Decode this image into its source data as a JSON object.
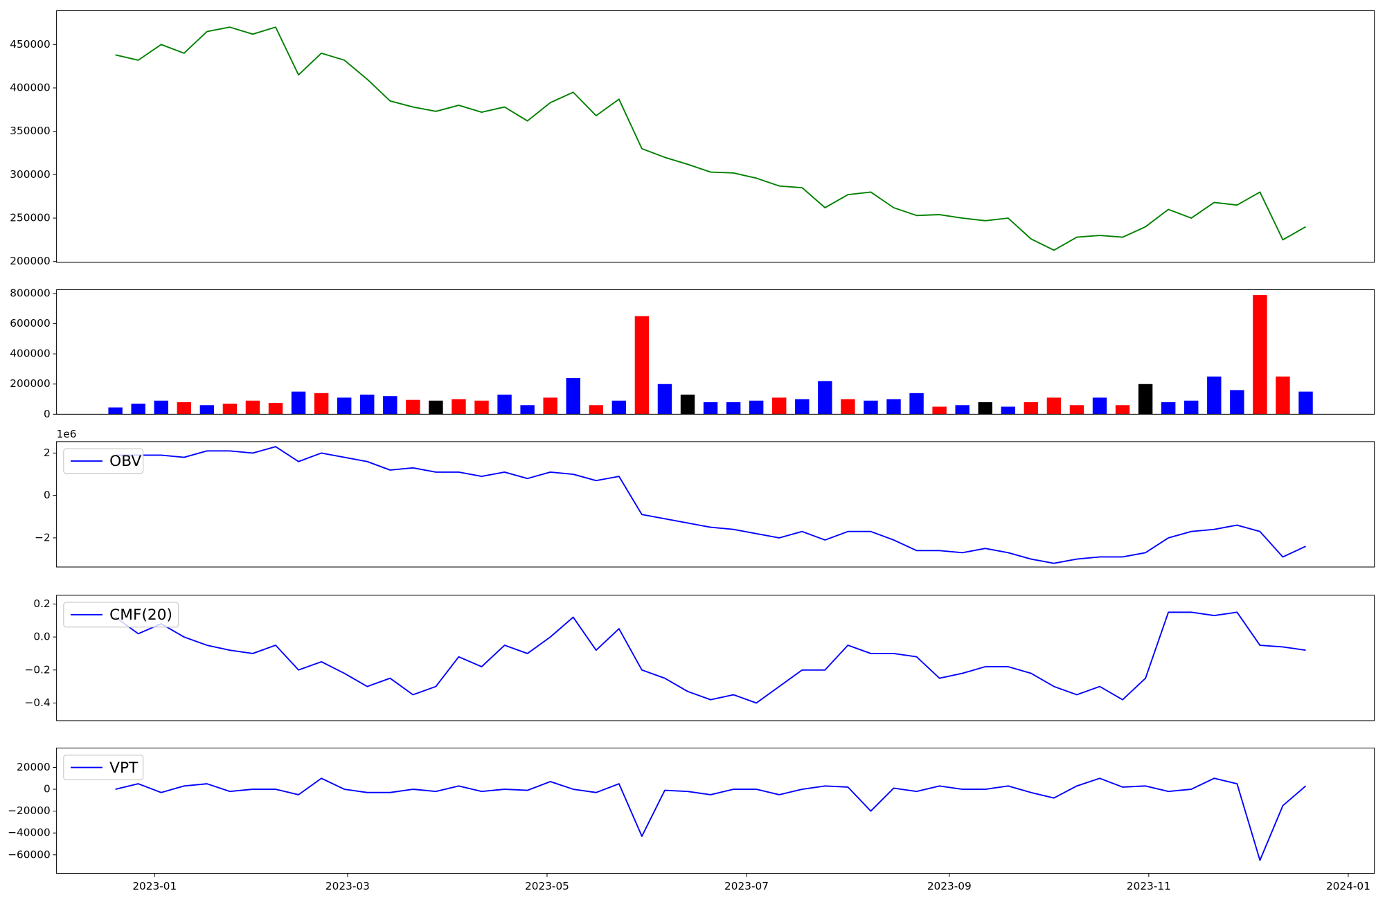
{
  "chart_data": [
    {
      "type": "line",
      "x": [
        "2022-12-20",
        "2022-12-27",
        "2023-01-03",
        "2023-01-10",
        "2023-01-17",
        "2023-01-24",
        "2023-01-31",
        "2023-02-07",
        "2023-02-14",
        "2023-02-21",
        "2023-02-28",
        "2023-03-07",
        "2023-03-14",
        "2023-03-21",
        "2023-03-28",
        "2023-04-04",
        "2023-04-11",
        "2023-04-18",
        "2023-04-25",
        "2023-05-02",
        "2023-05-09",
        "2023-05-16",
        "2023-05-23",
        "2023-05-30",
        "2023-06-06",
        "2023-06-13",
        "2023-06-20",
        "2023-06-27",
        "2023-07-04",
        "2023-07-11",
        "2023-07-18",
        "2023-07-25",
        "2023-08-01",
        "2023-08-08",
        "2023-08-15",
        "2023-08-22",
        "2023-08-29",
        "2023-09-05",
        "2023-09-12",
        "2023-09-19",
        "2023-09-26",
        "2023-10-03",
        "2023-10-10",
        "2023-10-17",
        "2023-10-24",
        "2023-10-31",
        "2023-11-07",
        "2023-11-14",
        "2023-11-21",
        "2023-11-28",
        "2023-12-05",
        "2023-12-12",
        "2023-12-19"
      ],
      "values": [
        438000,
        432000,
        450000,
        440000,
        465000,
        470000,
        462000,
        470000,
        415000,
        440000,
        432000,
        410000,
        385000,
        378000,
        373000,
        380000,
        372000,
        378000,
        362000,
        383000,
        395000,
        368000,
        387000,
        330000,
        320000,
        312000,
        303000,
        302000,
        296000,
        287000,
        285000,
        262000,
        277000,
        280000,
        262000,
        253000,
        254000,
        250000,
        247000,
        250000,
        226000,
        213000,
        228000,
        230000,
        228000,
        240000,
        260000,
        250000,
        268000,
        265000,
        280000,
        225000,
        240000
      ],
      "color": "green",
      "xlim": [
        "2022-12-02",
        "2024-01-09"
      ],
      "ylim": [
        199000,
        489000
      ],
      "yticks": [
        200000,
        250000,
        300000,
        350000,
        400000,
        450000
      ]
    },
    {
      "type": "bar",
      "x": [
        "2022-12-20",
        "2022-12-27",
        "2023-01-03",
        "2023-01-10",
        "2023-01-17",
        "2023-01-24",
        "2023-01-31",
        "2023-02-07",
        "2023-02-14",
        "2023-02-21",
        "2023-02-28",
        "2023-03-07",
        "2023-03-14",
        "2023-03-21",
        "2023-03-28",
        "2023-04-04",
        "2023-04-11",
        "2023-04-18",
        "2023-04-25",
        "2023-05-02",
        "2023-05-09",
        "2023-05-16",
        "2023-05-23",
        "2023-05-30",
        "2023-06-06",
        "2023-06-13",
        "2023-06-20",
        "2023-06-27",
        "2023-07-04",
        "2023-07-11",
        "2023-07-18",
        "2023-07-25",
        "2023-08-01",
        "2023-08-08",
        "2023-08-15",
        "2023-08-22",
        "2023-08-29",
        "2023-09-05",
        "2023-09-12",
        "2023-09-19",
        "2023-09-26",
        "2023-10-03",
        "2023-10-10",
        "2023-10-17",
        "2023-10-24",
        "2023-10-31",
        "2023-11-07",
        "2023-11-14",
        "2023-11-21",
        "2023-11-28",
        "2023-12-05",
        "2023-12-12",
        "2023-12-19"
      ],
      "values": [
        45000,
        70000,
        90000,
        80000,
        60000,
        70000,
        90000,
        75000,
        150000,
        140000,
        110000,
        130000,
        120000,
        95000,
        90000,
        100000,
        90000,
        130000,
        60000,
        110000,
        240000,
        60000,
        90000,
        650000,
        200000,
        130000,
        80000,
        80000,
        90000,
        110000,
        100000,
        220000,
        100000,
        90000,
        100000,
        140000,
        50000,
        60000,
        80000,
        50000,
        80000,
        110000,
        60000,
        110000,
        60000,
        200000,
        80000,
        90000,
        250000,
        160000,
        790000,
        250000,
        150000
      ],
      "colors": [
        "blue",
        "blue",
        "blue",
        "red",
        "blue",
        "red",
        "red",
        "red",
        "blue",
        "red",
        "blue",
        "blue",
        "blue",
        "red",
        "black",
        "red",
        "red",
        "blue",
        "blue",
        "red",
        "blue",
        "red",
        "blue",
        "red",
        "blue",
        "black",
        "blue",
        "blue",
        "blue",
        "red",
        "blue",
        "blue",
        "red",
        "blue",
        "blue",
        "blue",
        "red",
        "blue",
        "black",
        "blue",
        "red",
        "red",
        "red",
        "blue",
        "red",
        "black",
        "blue",
        "blue",
        "blue",
        "blue",
        "red",
        "red",
        "blue"
      ],
      "xlim": [
        "2022-12-02",
        "2024-01-09"
      ],
      "ylim": [
        0,
        825000
      ],
      "yticks": [
        0,
        200000,
        400000,
        600000,
        800000
      ]
    },
    {
      "type": "line",
      "x": [
        "2022-12-20",
        "2022-12-27",
        "2023-01-03",
        "2023-01-10",
        "2023-01-17",
        "2023-01-24",
        "2023-01-31",
        "2023-02-07",
        "2023-02-14",
        "2023-02-21",
        "2023-02-28",
        "2023-03-07",
        "2023-03-14",
        "2023-03-21",
        "2023-03-28",
        "2023-04-04",
        "2023-04-11",
        "2023-04-18",
        "2023-04-25",
        "2023-05-02",
        "2023-05-09",
        "2023-05-16",
        "2023-05-23",
        "2023-05-30",
        "2023-06-06",
        "2023-06-13",
        "2023-06-20",
        "2023-06-27",
        "2023-07-04",
        "2023-07-11",
        "2023-07-18",
        "2023-07-25",
        "2023-08-01",
        "2023-08-08",
        "2023-08-15",
        "2023-08-22",
        "2023-08-29",
        "2023-09-05",
        "2023-09-12",
        "2023-09-19",
        "2023-09-26",
        "2023-10-03",
        "2023-10-10",
        "2023-10-17",
        "2023-10-24",
        "2023-10-31",
        "2023-11-07",
        "2023-11-14",
        "2023-11-21",
        "2023-11-28",
        "2023-12-05",
        "2023-12-12",
        "2023-12-19"
      ],
      "series": [
        {
          "name": "OBV",
          "color": "blue",
          "values": [
            1900000,
            1900000,
            1900000,
            1800000,
            2100000,
            2100000,
            2000000,
            2300000,
            1600000,
            2000000,
            1800000,
            1600000,
            1200000,
            1300000,
            1100000,
            1100000,
            900000,
            1100000,
            800000,
            1100000,
            1000000,
            700000,
            900000,
            -900000,
            -1100000,
            -1300000,
            -1500000,
            -1600000,
            -1800000,
            -2000000,
            -1700000,
            -2100000,
            -1700000,
            -1700000,
            -2100000,
            -2600000,
            -2600000,
            -2700000,
            -2500000,
            -2700000,
            -3000000,
            -3200000,
            -3000000,
            -2900000,
            -2900000,
            -2700000,
            -2000000,
            -1700000,
            -1600000,
            -1400000,
            -1700000,
            -2900000,
            -2400000
          ]
        }
      ],
      "xlim": [
        "2022-12-02",
        "2024-01-09"
      ],
      "ylim": [
        -3375000,
        2540000
      ],
      "yticks": [
        {
          "value": -2000000,
          "label": "−2"
        },
        0,
        {
          "value": 2000000,
          "label": "2"
        }
      ],
      "y_offset_label": "1e6",
      "legend": "upper left"
    },
    {
      "type": "line",
      "x": [
        "2022-12-20",
        "2022-12-27",
        "2023-01-03",
        "2023-01-10",
        "2023-01-17",
        "2023-01-24",
        "2023-01-31",
        "2023-02-07",
        "2023-02-14",
        "2023-02-21",
        "2023-02-28",
        "2023-03-07",
        "2023-03-14",
        "2023-03-21",
        "2023-03-28",
        "2023-04-04",
        "2023-04-11",
        "2023-04-18",
        "2023-04-25",
        "2023-05-02",
        "2023-05-09",
        "2023-05-16",
        "2023-05-23",
        "2023-05-30",
        "2023-06-06",
        "2023-06-13",
        "2023-06-20",
        "2023-06-27",
        "2023-07-04",
        "2023-07-11",
        "2023-07-18",
        "2023-07-25",
        "2023-08-01",
        "2023-08-08",
        "2023-08-15",
        "2023-08-22",
        "2023-08-29",
        "2023-09-05",
        "2023-09-12",
        "2023-09-19",
        "2023-09-26",
        "2023-10-03",
        "2023-10-10",
        "2023-10-17",
        "2023-10-24",
        "2023-10-31",
        "2023-11-07",
        "2023-11-14",
        "2023-11-21",
        "2023-11-28",
        "2023-12-05",
        "2023-12-12",
        "2023-12-19"
      ],
      "series": [
        {
          "name": "CMF(20)",
          "color": "blue",
          "values": [
            0.12,
            0.02,
            0.08,
            0.0,
            -0.05,
            -0.08,
            -0.1,
            -0.05,
            -0.2,
            -0.15,
            -0.22,
            -0.3,
            -0.25,
            -0.35,
            -0.3,
            -0.12,
            -0.18,
            -0.05,
            -0.1,
            0.0,
            0.12,
            -0.08,
            0.05,
            -0.2,
            -0.25,
            -0.33,
            -0.38,
            -0.35,
            -0.4,
            -0.3,
            -0.2,
            -0.2,
            -0.05,
            -0.1,
            -0.1,
            -0.12,
            -0.25,
            -0.22,
            -0.18,
            -0.18,
            -0.22,
            -0.3,
            -0.35,
            -0.3,
            -0.38,
            -0.25,
            0.15,
            0.15,
            0.13,
            0.15,
            -0.05,
            -0.06,
            -0.08
          ]
        }
      ],
      "xlim": [
        "2022-12-02",
        "2024-01-09"
      ],
      "ylim": [
        -0.507,
        0.253
      ],
      "yticks": [
        {
          "value": -0.4,
          "label": "−0.4"
        },
        {
          "value": -0.2,
          "label": "−0.2"
        },
        {
          "value": 0,
          "label": "0.0"
        },
        0.2
      ],
      "legend": "upper left"
    },
    {
      "type": "line",
      "x": [
        "2022-12-20",
        "2022-12-27",
        "2023-01-03",
        "2023-01-10",
        "2023-01-17",
        "2023-01-24",
        "2023-01-31",
        "2023-02-07",
        "2023-02-14",
        "2023-02-21",
        "2023-02-28",
        "2023-03-07",
        "2023-03-14",
        "2023-03-21",
        "2023-03-28",
        "2023-04-04",
        "2023-04-11",
        "2023-04-18",
        "2023-04-25",
        "2023-05-02",
        "2023-05-09",
        "2023-05-16",
        "2023-05-23",
        "2023-05-30",
        "2023-06-06",
        "2023-06-13",
        "2023-06-20",
        "2023-06-27",
        "2023-07-04",
        "2023-07-11",
        "2023-07-18",
        "2023-07-25",
        "2023-08-01",
        "2023-08-08",
        "2023-08-15",
        "2023-08-22",
        "2023-08-29",
        "2023-09-05",
        "2023-09-12",
        "2023-09-19",
        "2023-09-26",
        "2023-10-03",
        "2023-10-10",
        "2023-10-17",
        "2023-10-24",
        "2023-10-31",
        "2023-11-07",
        "2023-11-14",
        "2023-11-21",
        "2023-11-28",
        "2023-12-05",
        "2023-12-12",
        "2023-12-19"
      ],
      "series": [
        {
          "name": "VPT",
          "color": "blue",
          "values": [
            0,
            5000,
            -3000,
            3000,
            5000,
            -2000,
            0,
            0,
            -5000,
            10000,
            0,
            -3000,
            -3000,
            0,
            -2000,
            3000,
            -2000,
            0,
            -1000,
            7000,
            0,
            -3000,
            5000,
            -43000,
            -1000,
            -2000,
            -5000,
            0,
            0,
            -5000,
            0,
            3000,
            2000,
            -20000,
            1000,
            -2000,
            3000,
            0,
            0,
            3000,
            -3000,
            -8000,
            3000,
            10000,
            2000,
            3000,
            -2000,
            0,
            10000,
            5000,
            -65000,
            -15000,
            3000
          ]
        }
      ],
      "xlim": [
        "2022-12-02",
        "2024-01-09"
      ],
      "ylim": [
        -77000,
        37700
      ],
      "yticks": [
        {
          "value": -60000,
          "label": "−60000"
        },
        {
          "value": -40000,
          "label": "−40000"
        },
        {
          "value": -20000,
          "label": "−20000"
        },
        0,
        20000
      ],
      "xticks": [
        {
          "value": "2023-01-01",
          "label": "2023-01"
        },
        {
          "value": "2023-03-01",
          "label": "2023-03"
        },
        {
          "value": "2023-05-01",
          "label": "2023-05"
        },
        {
          "value": "2023-07-01",
          "label": "2023-07"
        },
        {
          "value": "2023-09-01",
          "label": "2023-09"
        },
        {
          "value": "2023-11-01",
          "label": "2023-11"
        },
        {
          "value": "2024-01-01",
          "label": "2024-01"
        }
      ],
      "legend": "upper left"
    }
  ]
}
